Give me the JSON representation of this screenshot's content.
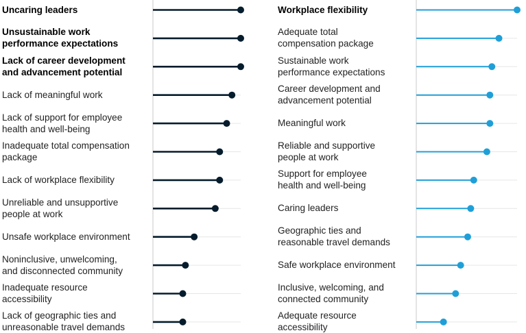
{
  "chart_data": [
    {
      "type": "lollipop",
      "orientation": "horizontal",
      "color": "#051c2c",
      "categories": [
        "Uncaring leaders",
        "Unsustainable work performance expectations",
        "Lack of career development and advancement potential",
        "Lack of meaningful work",
        "Lack of support for employee health and well-being",
        "Inadequate total compensation package",
        "Lack of workplace flexibility",
        "Unreliable and unsupportive people at work",
        "Unsafe workplace environment",
        "Noninclusive, unwelcoming, and disconnected community",
        "Inadequate resource accessibility",
        "Lack of geographic ties and unreasonable travel demands"
      ],
      "label_lines": [
        [
          "Uncaring leaders"
        ],
        [
          "Unsustainable work",
          "performance expectations"
        ],
        [
          "Lack of career development",
          "and advancement potential"
        ],
        [
          "Lack of meaningful work"
        ],
        [
          "Lack of support for employee",
          "health and well-being"
        ],
        [
          "Inadequate total compensation",
          "package"
        ],
        [
          "Lack of workplace flexibility"
        ],
        [
          "Unreliable and unsupportive",
          "people at work"
        ],
        [
          "Unsafe workplace environment"
        ],
        [
          "Noninclusive, unwelcoming,",
          "and disconnected community"
        ],
        [
          "Inadequate resource",
          "accessibility"
        ],
        [
          "Lack of geographic ties and",
          "unreasonable travel demands"
        ]
      ],
      "highlighted": [
        0,
        1,
        2
      ],
      "values": [
        100,
        100,
        100,
        90,
        84,
        76,
        76,
        71,
        47,
        37,
        34,
        34
      ],
      "xlim": [
        0,
        100
      ]
    },
    {
      "type": "lollipop",
      "orientation": "horizontal",
      "color": "#1f9fd8",
      "categories": [
        "Workplace flexibility",
        "Adequate total compensation package",
        "Sustainable work performance expectations",
        "Career development and advancement potential",
        "Meaningful work",
        "Reliable and supportive people at work",
        "Support for employee health and well-being",
        "Caring leaders",
        "Geographic ties and reasonable travel demands",
        "Safe workplace environment",
        "Inclusive, welcoming, and connected community",
        "Adequate resource accessibility"
      ],
      "label_lines": [
        [
          "Workplace flexibility"
        ],
        [
          "Adequate total",
          "compensation package"
        ],
        [
          "Sustainable work",
          "performance expectations"
        ],
        [
          "Career development and",
          "advancement potential"
        ],
        [
          "Meaningful work"
        ],
        [
          "Reliable and supportive",
          "people at work"
        ],
        [
          "Support for employee",
          "health and well-being"
        ],
        [
          "Caring leaders"
        ],
        [
          "Geographic ties and",
          "reasonable travel demands"
        ],
        [
          "Safe workplace environment"
        ],
        [
          "Inclusive, welcoming, and",
          "connected community"
        ],
        [
          "Adequate resource",
          "accessibility"
        ]
      ],
      "highlighted": [
        0
      ],
      "values": [
        100,
        82,
        75,
        73,
        73,
        70,
        57,
        54,
        51,
        44,
        39,
        27
      ],
      "xlim": [
        0,
        100
      ]
    }
  ]
}
